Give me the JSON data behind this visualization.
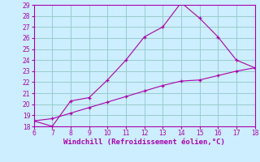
{
  "line1_x": [
    6,
    7,
    8,
    9,
    10,
    11,
    12,
    13,
    14,
    15,
    16,
    17,
    18
  ],
  "line1_y": [
    18.5,
    18.0,
    20.3,
    20.6,
    22.2,
    24.0,
    26.1,
    27.0,
    29.2,
    27.8,
    26.1,
    24.0,
    23.3
  ],
  "line2_x": [
    6,
    7,
    8,
    9,
    10,
    11,
    12,
    13,
    14,
    15,
    16,
    17,
    18
  ],
  "line2_y": [
    18.5,
    18.7,
    19.2,
    19.7,
    20.2,
    20.7,
    21.2,
    21.7,
    22.1,
    22.2,
    22.6,
    23.0,
    23.3
  ],
  "color": "#aa00aa",
  "bg_color": "#cceeff",
  "grid_color": "#99cccc",
  "xlabel": "Windchill (Refroidissement éolien,°C)",
  "xlim": [
    6,
    18
  ],
  "ylim": [
    18,
    29
  ],
  "xticks": [
    6,
    7,
    8,
    9,
    10,
    11,
    12,
    13,
    14,
    15,
    16,
    17,
    18
  ],
  "yticks": [
    18,
    19,
    20,
    21,
    22,
    23,
    24,
    25,
    26,
    27,
    28,
    29
  ],
  "tick_fontsize": 5.5,
  "xlabel_fontsize": 6.5,
  "xlabel_color": "#aa00aa"
}
